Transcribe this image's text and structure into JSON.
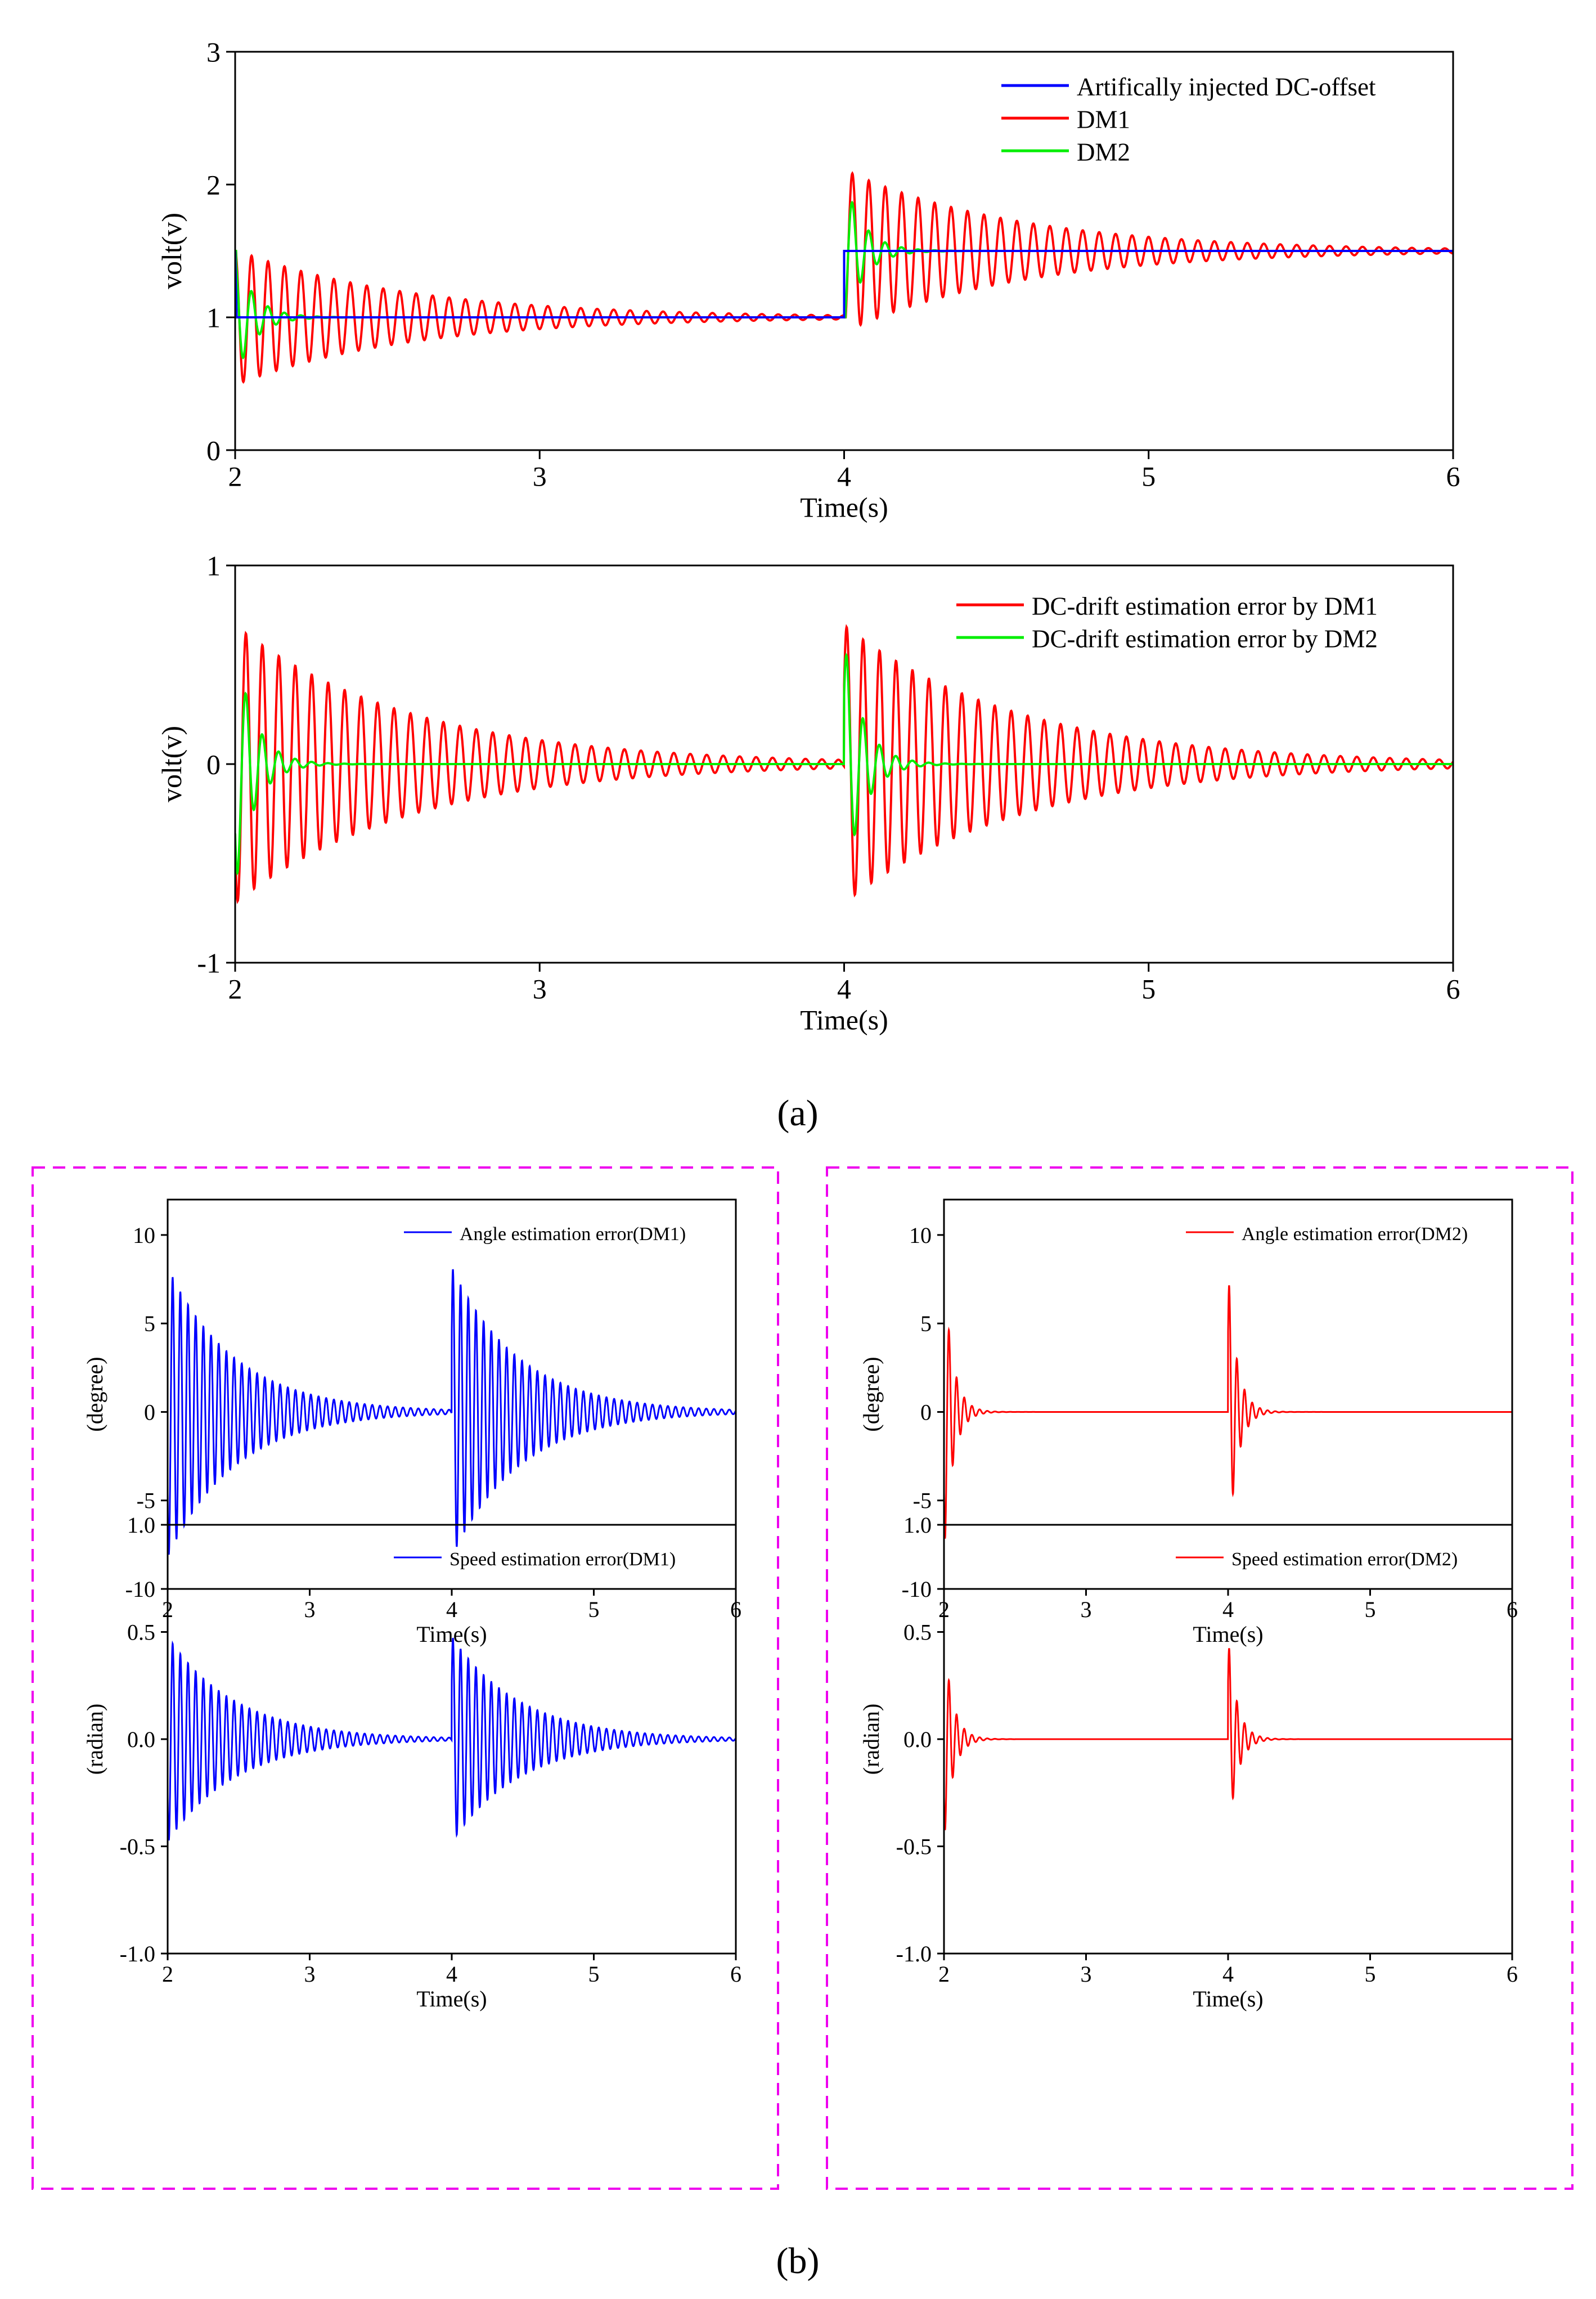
{
  "panel_labels": {
    "a": "(a)",
    "b": "(b)"
  },
  "colors": {
    "blue": "#0000ff",
    "red": "#ff0000",
    "green": "#00ee00",
    "box": "#ee00ee",
    "axis": "#000000"
  },
  "chart_data": [
    {
      "id": "dc_offset",
      "type": "line",
      "title": "",
      "xlabel": "Time(s)",
      "ylabel": "volt(v)",
      "xlim": [
        2,
        6
      ],
      "ylim": [
        0,
        3
      ],
      "xticks": [
        "2",
        "3",
        "4",
        "5",
        "6"
      ],
      "yticks": [
        "0",
        "1",
        "2",
        "3"
      ],
      "legend_position": "top-right",
      "series": [
        {
          "name": "Artifically injected DC-offset",
          "color": "#0000ff",
          "kind": "step",
          "points": [
            [
              2.0,
              1.5
            ],
            [
              2.005,
              1.0
            ],
            [
              4.0,
              1.0
            ],
            [
              4.0,
              1.5
            ],
            [
              6.0,
              1.5
            ]
          ]
        },
        {
          "name": "DM1",
          "color": "#ff0000",
          "kind": "osc_offset",
          "events": [
            [
              2.0,
              1.5
            ],
            [
              4.0,
              1.0
            ]
          ],
          "amplitude": 0.68,
          "frequency_hz": 18.5,
          "decay_per_s": 1.75
        },
        {
          "name": "DM2",
          "color": "#00ee00",
          "kind": "osc_offset",
          "events": [
            [
              2.0,
              1.5
            ],
            [
              4.0,
              1.0
            ]
          ],
          "amplitude": 0.62,
          "frequency_hz": 18.5,
          "decay_per_s": 16
        }
      ]
    },
    {
      "id": "dc_drift_error",
      "type": "line",
      "title": "",
      "xlabel": "Time(s)",
      "ylabel": "volt(v)",
      "xlim": [
        2,
        6
      ],
      "ylim": [
        -1,
        1
      ],
      "xticks": [
        "2",
        "3",
        "4",
        "5",
        "6"
      ],
      "yticks": [
        "-1",
        "0",
        "1"
      ],
      "legend_position": "top-right",
      "series": [
        {
          "name": "DC-drift estimation error by DM1",
          "color": "#ff0000",
          "kind": "osc",
          "events": [
            2.0,
            4.0
          ],
          "amplitude": 0.7,
          "frequency_hz": 18.5,
          "decay_per_s": 1.75
        },
        {
          "name": "DC-drift estimation error by DM2",
          "color": "#00ee00",
          "kind": "osc",
          "events": [
            2.0,
            4.0
          ],
          "amplitude": 0.62,
          "frequency_hz": 18.5,
          "decay_per_s": 16
        }
      ]
    },
    {
      "id": "angle_dm1",
      "type": "line",
      "title": "",
      "xlabel": "Time(s)",
      "ylabel": "(degree)",
      "xlim": [
        2,
        6
      ],
      "ylim": [
        -10,
        12
      ],
      "xticks": [
        "2",
        "3",
        "4",
        "5",
        "6"
      ],
      "yticks": [
        "-10",
        "-5",
        "0",
        "5",
        "10"
      ],
      "legend_position": "top-right",
      "series": [
        {
          "name": "Angle estimation error(DM1)",
          "color": "#0000ff",
          "kind": "osc",
          "events": [
            2.0,
            4.0
          ],
          "amplitude": 8.2,
          "frequency_hz": 18.5,
          "decay_per_s": 2.1
        }
      ]
    },
    {
      "id": "angle_dm2",
      "type": "line",
      "title": "",
      "xlabel": "Time(s)",
      "ylabel": "(degree)",
      "xlim": [
        2,
        6
      ],
      "ylim": [
        -10,
        12
      ],
      "xticks": [
        "2",
        "3",
        "4",
        "5",
        "6"
      ],
      "yticks": [
        "-10",
        "-5",
        "0",
        "5",
        "10"
      ],
      "legend_position": "top-right",
      "series": [
        {
          "name": "Angle estimation error(DM2)",
          "color": "#ff0000",
          "kind": "osc",
          "events": [
            2.0,
            4.0
          ],
          "amplitude": 8.1,
          "frequency_hz": 18.5,
          "decay_per_s": 16
        }
      ]
    },
    {
      "id": "speed_dm1",
      "type": "line",
      "title": "",
      "xlabel": "Time(s)",
      "ylabel": "(radian)",
      "xlim": [
        2,
        6
      ],
      "ylim": [
        -1.0,
        1.0
      ],
      "xticks": [
        "2",
        "3",
        "4",
        "5",
        "6"
      ],
      "yticks": [
        "-1.0",
        "-0.5",
        "0.0",
        "0.5",
        "1.0"
      ],
      "legend_position": "top-right",
      "series": [
        {
          "name": "Speed estimation error(DM1)",
          "color": "#0000ff",
          "kind": "osc",
          "events": [
            2.0,
            4.0
          ],
          "amplitude": 0.48,
          "frequency_hz": 18.5,
          "decay_per_s": 2.1
        }
      ]
    },
    {
      "id": "speed_dm2",
      "type": "line",
      "title": "",
      "xlabel": "Time(s)",
      "ylabel": "(radian)",
      "xlim": [
        2,
        6
      ],
      "ylim": [
        -1.0,
        1.0
      ],
      "xticks": [
        "2",
        "3",
        "4",
        "5",
        "6"
      ],
      "yticks": [
        "-1.0",
        "-0.5",
        "0.0",
        "0.5",
        "1.0"
      ],
      "legend_position": "top-right",
      "series": [
        {
          "name": "Speed estimation error(DM2)",
          "color": "#ff0000",
          "kind": "osc",
          "events": [
            2.0,
            4.0
          ],
          "amplitude": 0.48,
          "frequency_hz": 18.5,
          "decay_per_s": 16
        }
      ]
    }
  ]
}
